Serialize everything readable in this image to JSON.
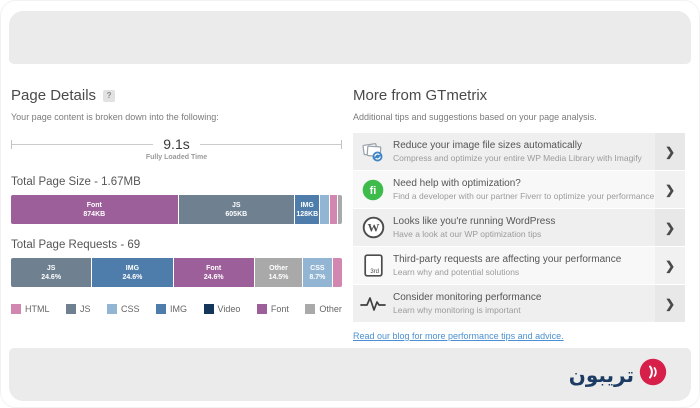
{
  "left": {
    "title": "Page Details",
    "help_badge": "?",
    "subtitle": "Your page content is broken down into the following:",
    "timeline": {
      "time": "9.1s",
      "label": "Fully Loaded Time"
    },
    "legend": [
      {
        "label": "HTML",
        "color": "#d287b0"
      },
      {
        "label": "JS",
        "color": "#6f8191"
      },
      {
        "label": "CSS",
        "color": "#93b5d4"
      },
      {
        "label": "IMG",
        "color": "#4e7dac"
      },
      {
        "label": "Video",
        "color": "#15365b"
      },
      {
        "label": "Font",
        "color": "#9d5f9a"
      },
      {
        "label": "Other",
        "color": "#a9a9a9"
      }
    ]
  },
  "chart_data": [
    {
      "type": "bar",
      "stacked": true,
      "title": "Total Page Size - 1.67MB",
      "total": "1.67MB",
      "series": [
        {
          "name": "Font",
          "label": "874KB",
          "pct": 51.1,
          "color": "#9d5f9a"
        },
        {
          "name": "JS",
          "label": "605KB",
          "pct": 35.4,
          "color": "#6f8191"
        },
        {
          "name": "IMG",
          "label": "128KB",
          "pct": 7.5,
          "color": "#4e7dac"
        },
        {
          "name": "CSS",
          "label": "",
          "pct": 2.6,
          "color": "#93b5d4"
        },
        {
          "name": "HTML",
          "label": "",
          "pct": 2.2,
          "color": "#d287b0"
        },
        {
          "name": "Other",
          "label": "",
          "pct": 1.2,
          "color": "#a9a9a9"
        }
      ]
    },
    {
      "type": "bar",
      "stacked": true,
      "title": "Total Page Requests - 69",
      "total": "69",
      "series": [
        {
          "name": "JS",
          "label": "24.6%",
          "pct": 24.6,
          "color": "#6f8191"
        },
        {
          "name": "IMG",
          "label": "24.6%",
          "pct": 24.6,
          "color": "#4e7dac"
        },
        {
          "name": "Font",
          "label": "24.6%",
          "pct": 24.6,
          "color": "#9d5f9a"
        },
        {
          "name": "Other",
          "label": "14.5%",
          "pct": 14.5,
          "color": "#a9a9a9"
        },
        {
          "name": "CSS",
          "label": "8.7%",
          "pct": 8.7,
          "color": "#93b5d4"
        },
        {
          "name": "HTML",
          "label": "",
          "pct": 2.9,
          "color": "#d287b0"
        }
      ]
    }
  ],
  "right": {
    "title": "More from GTmetrix",
    "subtitle": "Additional tips and suggestions based on your page analysis.",
    "chevron": "❯",
    "cards": [
      {
        "icon": "imagify-images-icon",
        "title": "Reduce your image file sizes automatically",
        "subtitle": "Compress and optimize your entire WP Media Library with Imagify"
      },
      {
        "icon": "fiverr-icon",
        "title": "Need help with optimization?",
        "subtitle": "Find a developer with our partner Fiverr to optimize your performance"
      },
      {
        "icon": "wordpress-icon",
        "title": "Looks like you're running WordPress",
        "subtitle": "Have a look at our WP optimization tips"
      },
      {
        "icon": "third-party-document-icon",
        "title": "Third-party requests are affecting your performance",
        "subtitle": "Learn why and potential solutions"
      },
      {
        "icon": "pulse-monitor-icon",
        "title": "Consider monitoring performance",
        "subtitle": "Learn why monitoring is important"
      }
    ],
    "blog_link": "Read our blog for more performance tips and advice."
  },
  "footer": {
    "logo_text": "تریبون"
  }
}
